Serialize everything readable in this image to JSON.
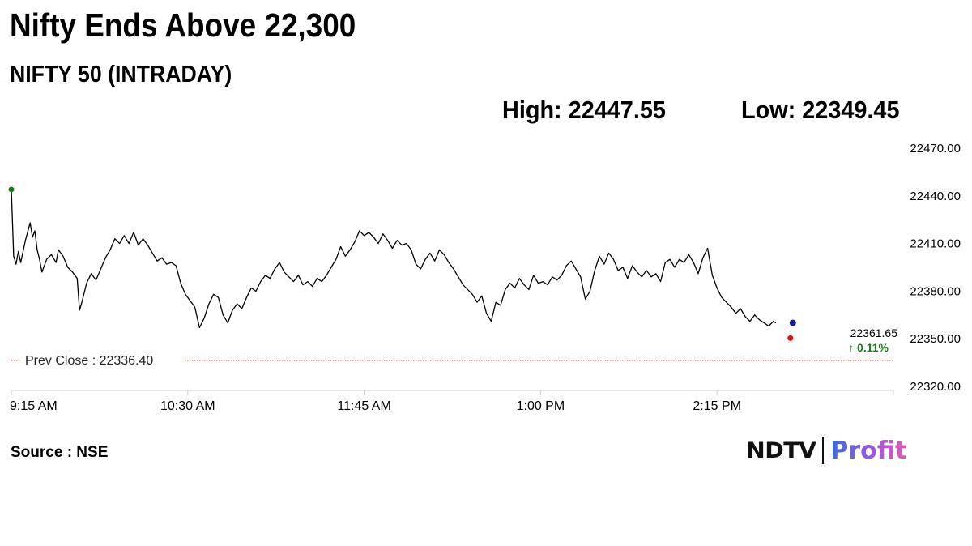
{
  "header": {
    "headline": "Nifty Ends Above 22,300",
    "subtitle": "NIFTY 50 (INTRADAY)",
    "high_label": "High: 22447.55",
    "low_label": "Low: 22349.45"
  },
  "footer": {
    "source": "Source : NSE",
    "brand_primary": "NDTV",
    "brand_secondary": "Profit"
  },
  "colors": {
    "line": "#000000",
    "open_marker": "#1a7a1a",
    "close_marker": "#e01010",
    "last_marker": "#1a1aa0",
    "prev_close_line": "#c0392b",
    "change_text": "#1a7a1a",
    "axis": "#cccccc"
  },
  "chart_data": {
    "type": "line",
    "title": "NIFTY 50 (INTRADAY)",
    "xlabel": "",
    "ylabel": "",
    "x_range_minutes": [
      555,
      930
    ],
    "ylim": [
      22320,
      22470
    ],
    "yticks": [
      22470,
      22440,
      22410,
      22380,
      22350,
      22320
    ],
    "ytick_labels": [
      "22470.00",
      "22440.00",
      "22410.00",
      "22380.00",
      "22350.00",
      "22320.00"
    ],
    "xticks": [
      555,
      630,
      705,
      780,
      855
    ],
    "xtick_labels": [
      "9:15 AM",
      "10:30 AM",
      "11:45 AM",
      "1:00 PM",
      "2:15 PM"
    ],
    "grid": false,
    "prev_close": {
      "value": 22336.4,
      "label": "Prev Close : 22336.40"
    },
    "last_value": {
      "value": 22361.65,
      "label": "22361.65",
      "change_label": "↑ 0.11%"
    },
    "series": [
      {
        "points": [
          [
            555,
            22444
          ],
          [
            556,
            22402
          ],
          [
            557,
            22397
          ],
          [
            558,
            22405
          ],
          [
            559,
            22398
          ],
          [
            561,
            22412
          ],
          [
            563,
            22423
          ],
          [
            564,
            22414
          ],
          [
            565,
            22418
          ],
          [
            566,
            22406
          ],
          [
            567,
            22400
          ],
          [
            568,
            22392
          ],
          [
            570,
            22400
          ],
          [
            572,
            22403
          ],
          [
            574,
            22398
          ],
          [
            575,
            22406
          ],
          [
            577,
            22402
          ],
          [
            579,
            22395
          ],
          [
            581,
            22392
          ],
          [
            583,
            22388
          ],
          [
            584,
            22368
          ],
          [
            585,
            22373
          ],
          [
            587,
            22385
          ],
          [
            589,
            22391
          ],
          [
            591,
            22387
          ],
          [
            593,
            22394
          ],
          [
            595,
            22401
          ],
          [
            597,
            22406
          ],
          [
            599,
            22413
          ],
          [
            601,
            22410
          ],
          [
            603,
            22415
          ],
          [
            605,
            22410
          ],
          [
            607,
            22417
          ],
          [
            609,
            22409
          ],
          [
            611,
            22413
          ],
          [
            613,
            22409
          ],
          [
            615,
            22404
          ],
          [
            617,
            22399
          ],
          [
            619,
            22401
          ],
          [
            621,
            22397
          ],
          [
            623,
            22398
          ],
          [
            625,
            22396
          ],
          [
            627,
            22385
          ],
          [
            629,
            22378
          ],
          [
            631,
            22374
          ],
          [
            633,
            22370
          ],
          [
            635,
            22357
          ],
          [
            637,
            22363
          ],
          [
            639,
            22372
          ],
          [
            641,
            22378
          ],
          [
            643,
            22376
          ],
          [
            645,
            22365
          ],
          [
            647,
            22360
          ],
          [
            649,
            22368
          ],
          [
            651,
            22372
          ],
          [
            653,
            22369
          ],
          [
            655,
            22376
          ],
          [
            657,
            22382
          ],
          [
            659,
            22380
          ],
          [
            661,
            22386
          ],
          [
            663,
            22390
          ],
          [
            665,
            22388
          ],
          [
            667,
            22394
          ],
          [
            669,
            22398
          ],
          [
            671,
            22392
          ],
          [
            673,
            22389
          ],
          [
            675,
            22386
          ],
          [
            677,
            22390
          ],
          [
            679,
            22384
          ],
          [
            681,
            22386
          ],
          [
            683,
            22383
          ],
          [
            685,
            22388
          ],
          [
            687,
            22386
          ],
          [
            689,
            22390
          ],
          [
            691,
            22395
          ],
          [
            693,
            22400
          ],
          [
            695,
            22408
          ],
          [
            697,
            22402
          ],
          [
            699,
            22406
          ],
          [
            701,
            22411
          ],
          [
            703,
            22418
          ],
          [
            705,
            22415
          ],
          [
            707,
            22417
          ],
          [
            709,
            22414
          ],
          [
            711,
            22410
          ],
          [
            713,
            22416
          ],
          [
            715,
            22412
          ],
          [
            717,
            22407
          ],
          [
            719,
            22412
          ],
          [
            721,
            22409
          ],
          [
            723,
            22410
          ],
          [
            725,
            22406
          ],
          [
            727,
            22397
          ],
          [
            729,
            22394
          ],
          [
            731,
            22400
          ],
          [
            733,
            22404
          ],
          [
            735,
            22399
          ],
          [
            737,
            22406
          ],
          [
            739,
            22403
          ],
          [
            741,
            22398
          ],
          [
            743,
            22394
          ],
          [
            745,
            22389
          ],
          [
            747,
            22384
          ],
          [
            749,
            22381
          ],
          [
            751,
            22378
          ],
          [
            753,
            22373
          ],
          [
            755,
            22377
          ],
          [
            757,
            22366
          ],
          [
            759,
            22361
          ],
          [
            761,
            22373
          ],
          [
            763,
            22371
          ],
          [
            765,
            22381
          ],
          [
            767,
            22385
          ],
          [
            769,
            22382
          ],
          [
            771,
            22388
          ],
          [
            773,
            22384
          ],
          [
            775,
            22381
          ],
          [
            777,
            22390
          ],
          [
            779,
            22385
          ],
          [
            781,
            22386
          ],
          [
            783,
            22384
          ],
          [
            785,
            22389
          ],
          [
            787,
            22387
          ],
          [
            789,
            22390
          ],
          [
            791,
            22396
          ],
          [
            793,
            22399
          ],
          [
            795,
            22394
          ],
          [
            797,
            22389
          ],
          [
            799,
            22375
          ],
          [
            801,
            22380
          ],
          [
            803,
            22393
          ],
          [
            805,
            22402
          ],
          [
            807,
            22397
          ],
          [
            809,
            22404
          ],
          [
            811,
            22400
          ],
          [
            813,
            22393
          ],
          [
            815,
            22395
          ],
          [
            817,
            22388
          ],
          [
            819,
            22396
          ],
          [
            821,
            22392
          ],
          [
            823,
            22389
          ],
          [
            825,
            22393
          ],
          [
            827,
            22389
          ],
          [
            829,
            22391
          ],
          [
            831,
            22386
          ],
          [
            833,
            22398
          ],
          [
            835,
            22400
          ],
          [
            837,
            22395
          ],
          [
            839,
            22400
          ],
          [
            841,
            22398
          ],
          [
            843,
            22403
          ],
          [
            845,
            22398
          ],
          [
            847,
            22391
          ],
          [
            849,
            22401
          ],
          [
            851,
            22407
          ],
          [
            853,
            22390
          ],
          [
            855,
            22382
          ],
          [
            857,
            22376
          ],
          [
            859,
            22373
          ],
          [
            861,
            22370
          ],
          [
            863,
            22366
          ],
          [
            865,
            22369
          ],
          [
            867,
            22364
          ],
          [
            869,
            22361
          ],
          [
            871,
            22365
          ],
          [
            873,
            22362
          ],
          [
            875,
            22360
          ],
          [
            877,
            22358
          ],
          [
            879,
            22361
          ],
          [
            880,
            22360
          ]
        ]
      }
    ]
  }
}
